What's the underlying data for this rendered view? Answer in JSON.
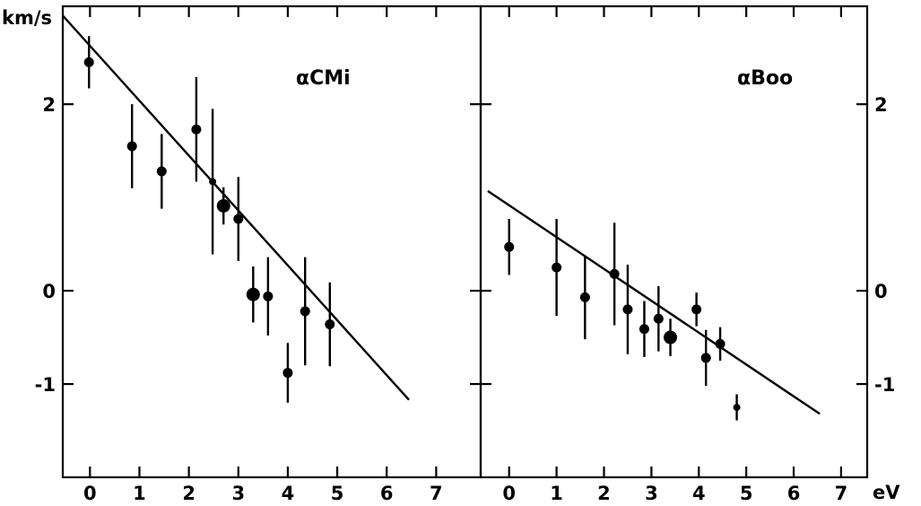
{
  "chart_data": [
    {
      "type": "scatter",
      "title": "",
      "panel_label": "αCMi",
      "xlabel": "",
      "ylabel": "km/s",
      "xlim": [
        -0.55,
        7.9
      ],
      "ylim": [
        -2.0,
        3.05
      ],
      "x_ticks": [
        0,
        1,
        2,
        3,
        4,
        5,
        6,
        7
      ],
      "x_tick_labels": [
        "0",
        "1",
        "2",
        "3",
        "4",
        "5",
        "6",
        "7"
      ],
      "y_ticks": [
        -1,
        0,
        2
      ],
      "y_tick_labels": [
        "-1",
        "0",
        "2"
      ],
      "grid": false,
      "points": [
        {
          "x": -0.02,
          "y": 2.45,
          "err": 0.28,
          "size": "medium"
        },
        {
          "x": 0.85,
          "y": 1.55,
          "err": 0.45,
          "size": "medium"
        },
        {
          "x": 1.45,
          "y": 1.28,
          "err": 0.4,
          "size": "medium"
        },
        {
          "x": 2.15,
          "y": 1.73,
          "err": 0.56,
          "size": "medium"
        },
        {
          "x": 2.48,
          "y": 1.17,
          "err": 0.78,
          "size": "small"
        },
        {
          "x": 2.7,
          "y": 0.91,
          "err": 0.2,
          "size": "large"
        },
        {
          "x": 3.0,
          "y": 0.77,
          "err": 0.45,
          "size": "medium"
        },
        {
          "x": 3.3,
          "y": -0.04,
          "err": 0.3,
          "size": "large"
        },
        {
          "x": 3.6,
          "y": -0.06,
          "err": 0.42,
          "size": "medium"
        },
        {
          "x": 4.0,
          "y": -0.88,
          "err": 0.32,
          "size": "medium"
        },
        {
          "x": 4.35,
          "y": -0.22,
          "err": 0.58,
          "size": "medium"
        },
        {
          "x": 4.85,
          "y": -0.36,
          "err": 0.45,
          "size": "medium"
        }
      ],
      "fit_line": {
        "x": [
          -0.55,
          6.45
        ],
        "y": [
          2.95,
          -1.17
        ]
      }
    },
    {
      "type": "scatter",
      "title": "",
      "panel_label": "αBoo",
      "xlabel": "eV",
      "ylabel": "",
      "xlim": [
        -0.6,
        7.55
      ],
      "ylim": [
        -2.0,
        3.05
      ],
      "x_ticks": [
        0,
        1,
        2,
        3,
        4,
        5,
        6,
        7
      ],
      "x_tick_labels": [
        "0",
        "1",
        "2",
        "3",
        "4",
        "5",
        "6",
        "7"
      ],
      "y_ticks": [
        -1,
        0,
        2
      ],
      "y_tick_labels": [
        "-1",
        "0",
        "2"
      ],
      "grid": false,
      "points": [
        {
          "x": 0.0,
          "y": 0.47,
          "err": 0.3,
          "size": "medium"
        },
        {
          "x": 1.0,
          "y": 0.25,
          "err": 0.52,
          "size": "medium"
        },
        {
          "x": 1.6,
          "y": -0.07,
          "err": 0.45,
          "size": "medium"
        },
        {
          "x": 2.22,
          "y": 0.18,
          "err": 0.55,
          "size": "medium"
        },
        {
          "x": 2.5,
          "y": -0.2,
          "err": 0.48,
          "size": "medium"
        },
        {
          "x": 2.85,
          "y": -0.41,
          "err": 0.3,
          "size": "medium"
        },
        {
          "x": 3.15,
          "y": -0.3,
          "err": 0.35,
          "size": "medium"
        },
        {
          "x": 3.4,
          "y": -0.5,
          "err": 0.2,
          "size": "large"
        },
        {
          "x": 3.95,
          "y": -0.2,
          "err": 0.18,
          "size": "medium"
        },
        {
          "x": 4.15,
          "y": -0.72,
          "err": 0.3,
          "size": "medium"
        },
        {
          "x": 4.45,
          "y": -0.57,
          "err": 0.18,
          "size": "medium"
        },
        {
          "x": 4.8,
          "y": -1.25,
          "err": 0.14,
          "size": "small"
        }
      ],
      "fit_line": {
        "x": [
          -0.45,
          6.55
        ],
        "y": [
          1.07,
          -1.32
        ]
      }
    }
  ]
}
